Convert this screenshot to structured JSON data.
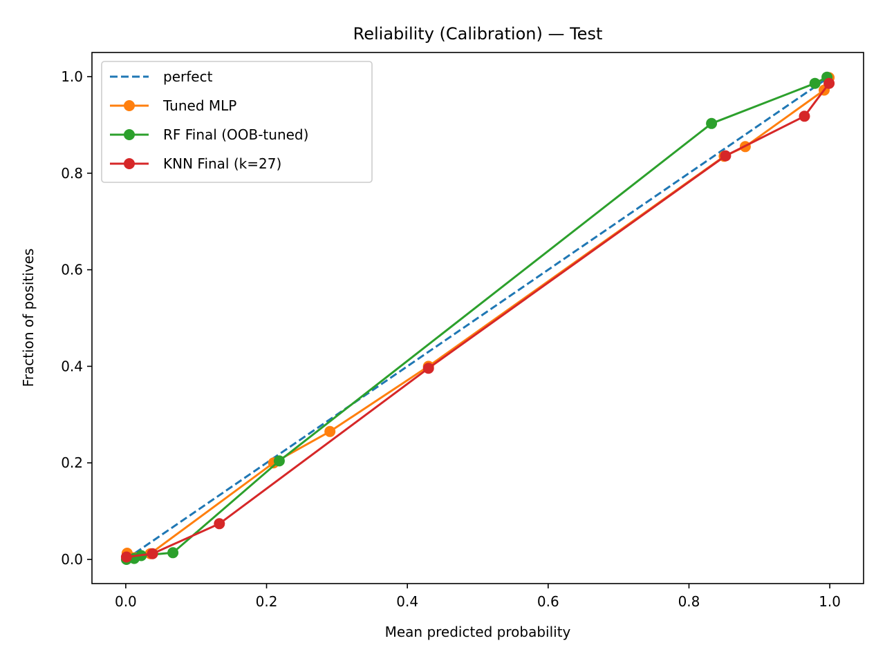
{
  "chart_data": {
    "type": "line",
    "title": "Reliability (Calibration) — Test",
    "xlabel": "Mean predicted probability",
    "ylabel": "Fraction of positives",
    "xlim": [
      -0.048,
      1.048
    ],
    "ylim": [
      -0.05,
      1.05
    ],
    "xticks": [
      0.0,
      0.2,
      0.4,
      0.6,
      0.8,
      1.0
    ],
    "yticks": [
      0.0,
      0.2,
      0.4,
      0.6,
      0.8,
      1.0
    ],
    "xtick_labels": [
      "0.0",
      "0.2",
      "0.4",
      "0.6",
      "0.8",
      "1.0"
    ],
    "ytick_labels": [
      "0.0",
      "0.2",
      "0.4",
      "0.6",
      "0.8",
      "1.0"
    ],
    "grid": false,
    "legend_position": "top-left",
    "series": [
      {
        "name": "perfect",
        "style": "dashed",
        "markers": false,
        "color": "#1f77b4",
        "x": [
          0,
          1
        ],
        "y": [
          0,
          1
        ]
      },
      {
        "name": "Tuned MLP",
        "style": "solid",
        "markers": true,
        "color": "#ff7f0e",
        "x": [
          0.002,
          0.035,
          0.21,
          0.29,
          0.43,
          0.85,
          0.88,
          0.992,
          0.999
        ],
        "y": [
          0.013,
          0.012,
          0.2,
          0.265,
          0.4,
          0.835,
          0.855,
          0.972,
          0.998
        ]
      },
      {
        "name": "RF Final (OOB-tuned)",
        "style": "solid",
        "markers": true,
        "color": "#2ca02c",
        "x": [
          0.001,
          0.012,
          0.022,
          0.067,
          0.218,
          0.832,
          0.979,
          0.996
        ],
        "y": [
          0.0,
          0.002,
          0.008,
          0.014,
          0.204,
          0.903,
          0.986,
          0.999
        ]
      },
      {
        "name": "KNN Final (k=27)",
        "style": "solid",
        "markers": true,
        "color": "#d62728",
        "x": [
          0.001,
          0.038,
          0.133,
          0.43,
          0.852,
          0.964,
          0.999
        ],
        "y": [
          0.005,
          0.012,
          0.074,
          0.396,
          0.836,
          0.918,
          0.986
        ]
      }
    ]
  }
}
